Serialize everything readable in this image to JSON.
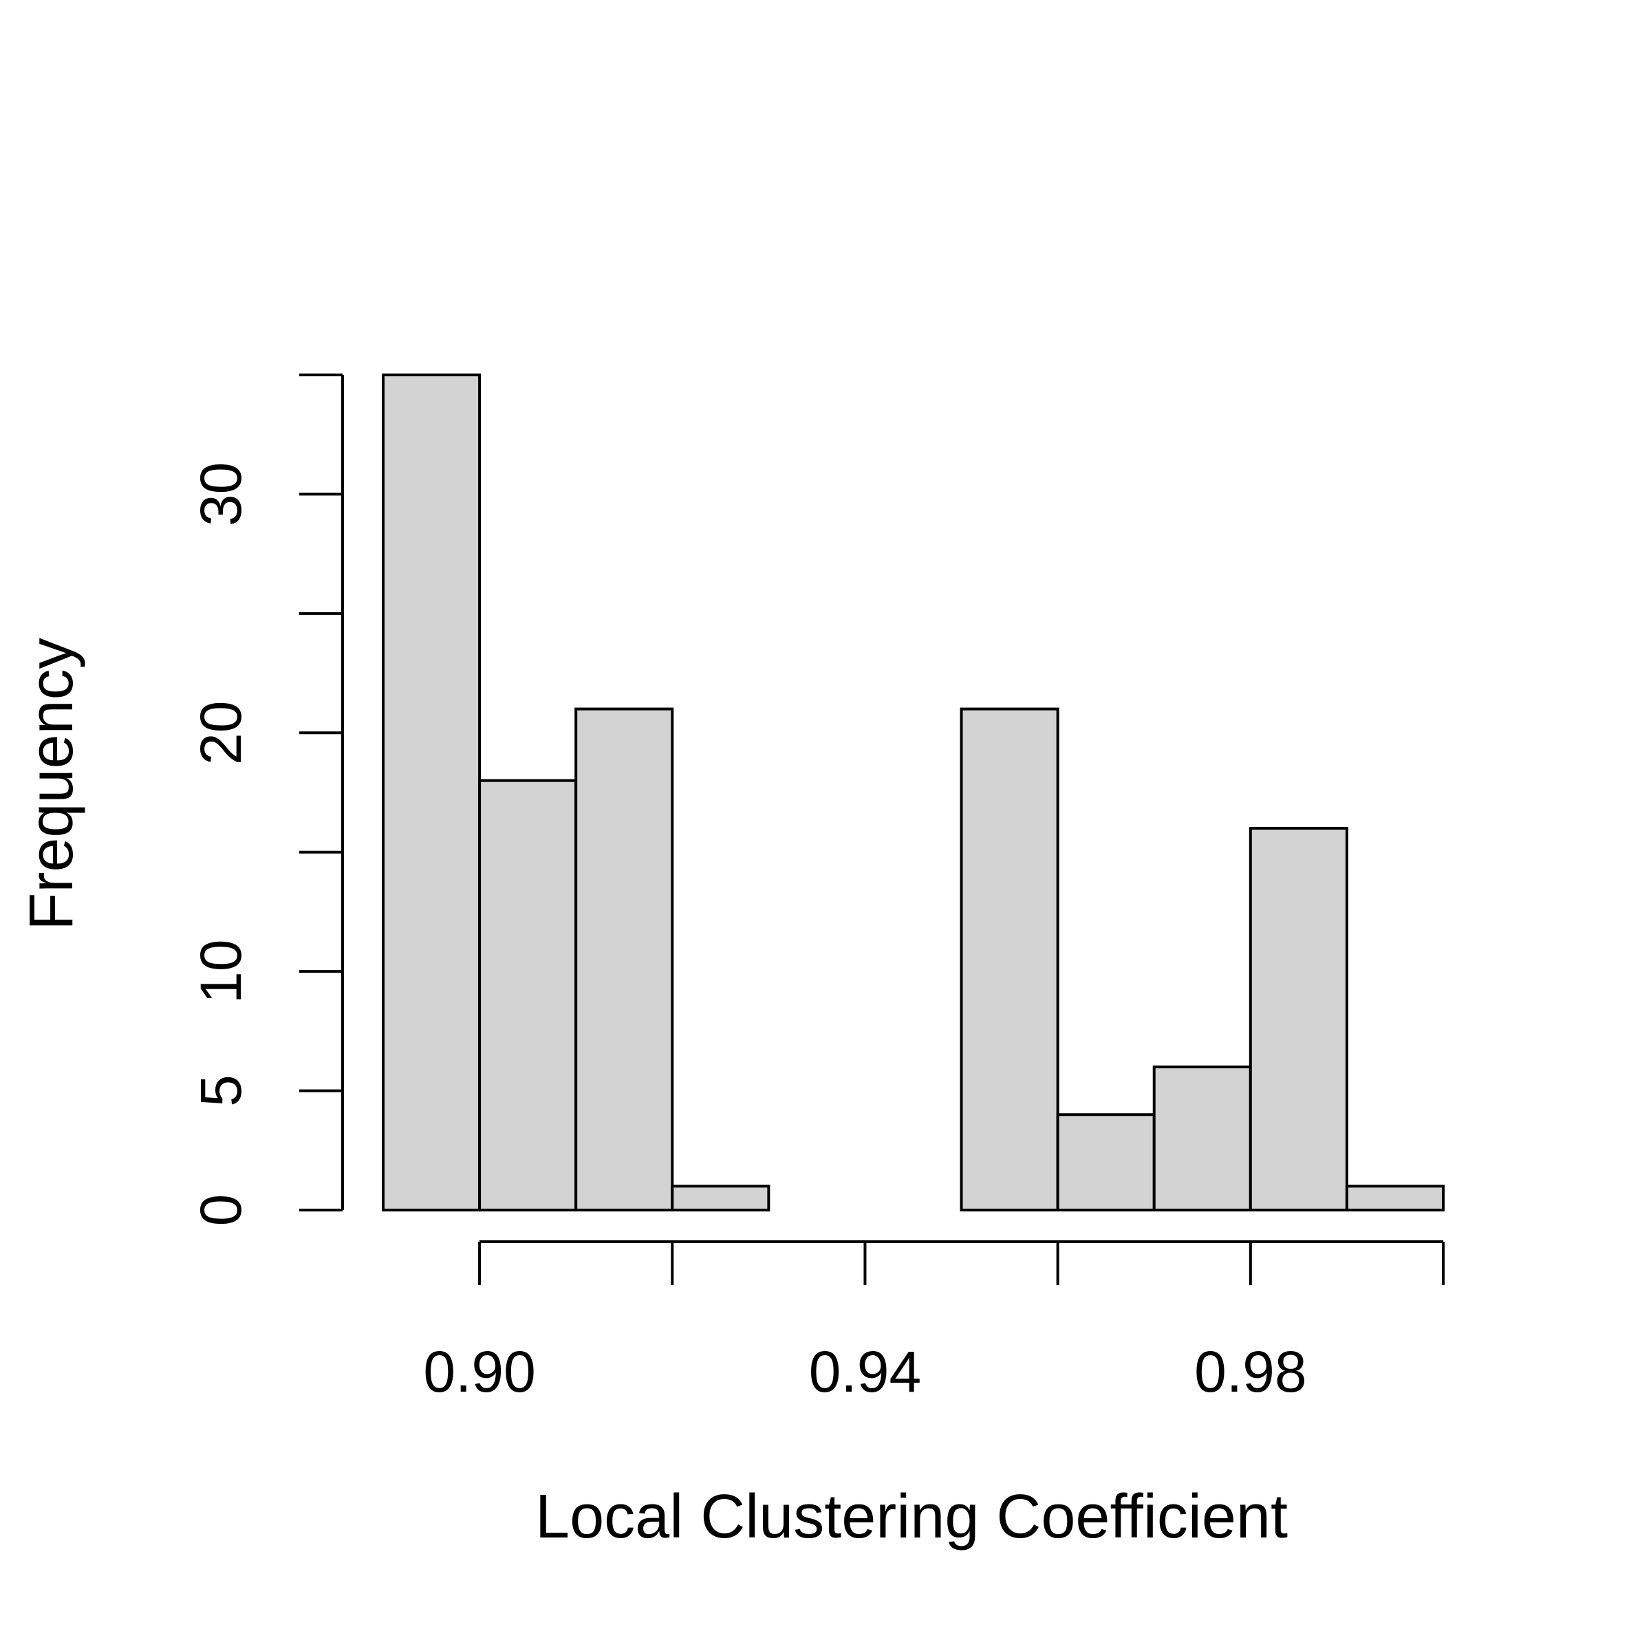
{
  "chart_data": {
    "type": "bar",
    "bins": [
      {
        "start": 0.885,
        "end": 0.895,
        "count": 35
      },
      {
        "start": 0.895,
        "end": 0.905,
        "count": 18
      },
      {
        "start": 0.905,
        "end": 0.915,
        "count": 21
      },
      {
        "start": 0.915,
        "end": 0.925,
        "count": 1
      },
      {
        "start": 0.925,
        "end": 0.935,
        "count": 0
      },
      {
        "start": 0.935,
        "end": 0.945,
        "count": 0
      },
      {
        "start": 0.945,
        "end": 0.955,
        "count": 21
      },
      {
        "start": 0.955,
        "end": 0.965,
        "count": 4
      },
      {
        "start": 0.965,
        "end": 0.975,
        "count": 6
      },
      {
        "start": 0.975,
        "end": 0.985,
        "count": 16
      },
      {
        "start": 0.985,
        "end": 0.995,
        "count": 1
      }
    ],
    "xlabel": "Local Clustering Coefficient",
    "ylabel": "Frequency",
    "x_ticks": [
      0.895,
      0.905,
      0.915,
      0.925,
      0.935,
      0.945,
      0.955,
      0.965,
      0.975,
      0.985,
      0.995
    ],
    "x_tick_labels": [
      {
        "value": 0.895,
        "label": "0.90"
      },
      {
        "value": 0.935,
        "label": "0.94"
      },
      {
        "value": 0.975,
        "label": "0.98"
      }
    ],
    "y_ticks": [
      0,
      5,
      10,
      15,
      20,
      25,
      30,
      35
    ],
    "y_tick_labels": [
      {
        "value": 0,
        "label": "0"
      },
      {
        "value": 5,
        "label": "5"
      },
      {
        "value": 10,
        "label": "10"
      },
      {
        "value": 20,
        "label": "20"
      },
      {
        "value": 30,
        "label": "30"
      }
    ],
    "xlim": [
      0.885,
      0.995
    ],
    "ylim": [
      0,
      35
    ],
    "bar_fill": "#d3d3d3",
    "bar_stroke": "#000000",
    "grid": false
  }
}
